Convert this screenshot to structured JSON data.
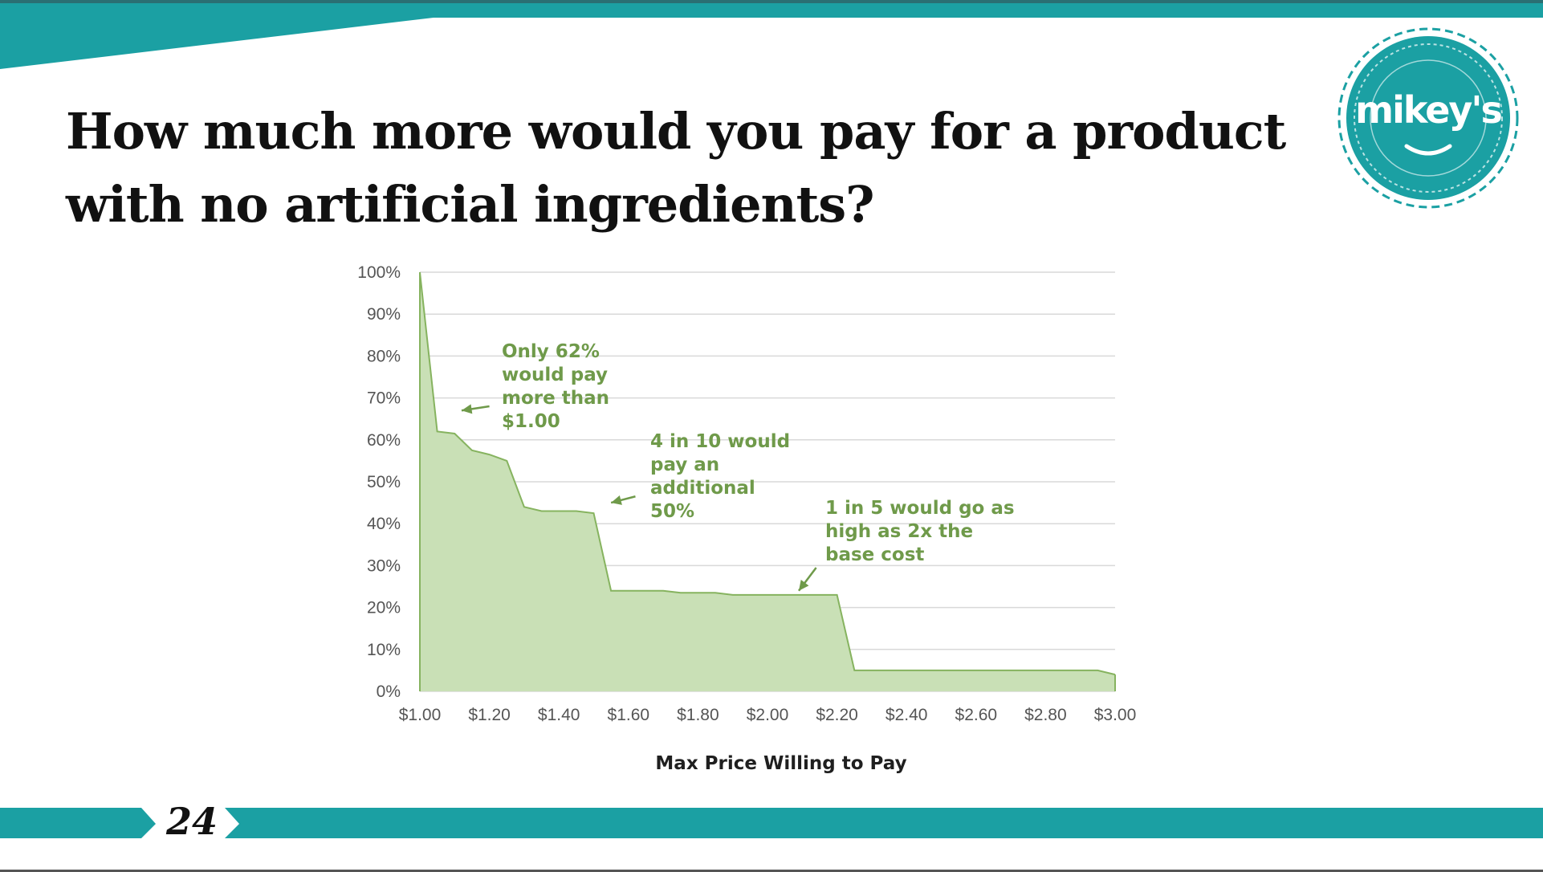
{
  "slide": {
    "title": "How much more would you pay for a product with no artificial ingredients?",
    "page_number": "24",
    "logo_text": "mikey's",
    "colors": {
      "teal": "#1ba0a3",
      "teal_dark": "#178e91",
      "text": "#111111"
    }
  },
  "chart_data": {
    "type": "area",
    "title": "",
    "xlabel": "Max Price Willing to Pay",
    "ylabel": "",
    "xlim": [
      1.0,
      3.0
    ],
    "ylim": [
      0,
      100
    ],
    "x_ticks": [
      "$1.00",
      "$1.20",
      "$1.40",
      "$1.60",
      "$1.80",
      "$2.00",
      "$2.20",
      "$2.40",
      "$2.60",
      "$2.80",
      "$3.00"
    ],
    "y_ticks": [
      "0%",
      "10%",
      "20%",
      "30%",
      "40%",
      "50%",
      "60%",
      "70%",
      "80%",
      "90%",
      "100%"
    ],
    "grid": true,
    "fill_color": "#c9e0b6",
    "line_color": "#86b35f",
    "annotation_color": "#6f9a4a",
    "x": [
      1.0,
      1.05,
      1.1,
      1.15,
      1.2,
      1.25,
      1.3,
      1.35,
      1.4,
      1.45,
      1.5,
      1.55,
      1.6,
      1.65,
      1.7,
      1.75,
      1.8,
      1.85,
      1.9,
      1.95,
      2.0,
      2.05,
      2.1,
      2.15,
      2.2,
      2.25,
      2.3,
      2.35,
      2.4,
      2.45,
      2.5,
      2.55,
      2.6,
      2.65,
      2.7,
      2.75,
      2.8,
      2.85,
      2.9,
      2.95,
      3.0
    ],
    "y": [
      100,
      62,
      61.5,
      57.5,
      56.5,
      55,
      44,
      43,
      43,
      43,
      42.5,
      24,
      24,
      24,
      24,
      23.5,
      23.5,
      23.5,
      23,
      23,
      23,
      23,
      23,
      23,
      23,
      5,
      5,
      5,
      5,
      5,
      5,
      5,
      5,
      5,
      5,
      5,
      5,
      5,
      5,
      5,
      4
    ],
    "annotations": [
      {
        "lines": [
          "Only 62%",
          "would pay",
          "more than",
          "$1.00"
        ],
        "arrow_to": [
          1.12,
          67
        ],
        "arrow_from": [
          1.2,
          68
        ]
      },
      {
        "lines": [
          "4 in 10 would",
          "pay an",
          "additional",
          "50%"
        ],
        "arrow_to": [
          1.55,
          45
        ],
        "arrow_from": [
          1.62,
          46.5
        ]
      },
      {
        "lines": [
          "1 in 5 would go as",
          "high as 2x the",
          "base cost"
        ],
        "arrow_to": [
          2.09,
          24
        ],
        "arrow_from": [
          2.14,
          29.5
        ]
      }
    ]
  }
}
